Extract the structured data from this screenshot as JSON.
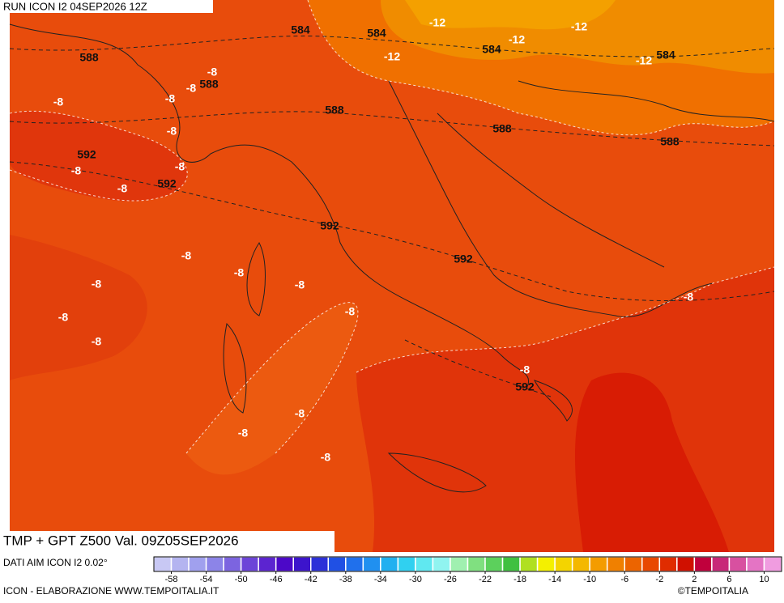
{
  "header": {
    "run": "RUN ICON I2 04SEP2026 12Z"
  },
  "title": "TMP + GPT Z500 Val. 09Z05SEP2026",
  "source": "DATI AIM ICON I2 0.02°",
  "footer": {
    "left": "ICON - ELABORAZIONE WWW.TEMPOITALIA.IT",
    "right": "©TEMPOITALIA"
  },
  "contour_labels": [
    "-12",
    "584",
    "584",
    "-12",
    "-12",
    "588",
    "-12",
    "584",
    "-12",
    "584",
    "588",
    "-8",
    "-8",
    "-8",
    "-8",
    "588",
    "-8",
    "588",
    "588",
    "592",
    "-8",
    "-8",
    "592",
    "-8",
    "592",
    "592",
    "-8",
    "-8",
    "-8",
    "-8",
    "-8",
    "-8",
    "-8",
    "-8",
    "-8",
    "592",
    "-8",
    "-8",
    "-8"
  ],
  "colorbar": {
    "lim": [
      -60,
      12
    ],
    "ticks": [
      -58,
      -54,
      -50,
      -46,
      -42,
      -38,
      -34,
      -30,
      -26,
      -22,
      -18,
      -14,
      -10,
      -6,
      -2,
      2,
      6,
      10
    ],
    "colors": [
      "#c8c8f4",
      "#b4b4f0",
      "#a0a0ee",
      "#8c84e8",
      "#7c64e0",
      "#6c44d8",
      "#5c24d0",
      "#4c08c8",
      "#3c14cc",
      "#2c30d8",
      "#2050e4",
      "#2070ec",
      "#2090f0",
      "#20b0f0",
      "#30d0f0",
      "#60e8f0",
      "#90f4f0",
      "#a0f0b0",
      "#80e080",
      "#5cd05c",
      "#40c040",
      "#b0e020",
      "#f4f000",
      "#f4d400",
      "#f4b800",
      "#f49c00",
      "#f08000",
      "#ec6400",
      "#e84800",
      "#e02c00",
      "#d01000",
      "#c0003c",
      "#c82878",
      "#d850a0",
      "#e474c4",
      "#f09ce0"
    ]
  }
}
